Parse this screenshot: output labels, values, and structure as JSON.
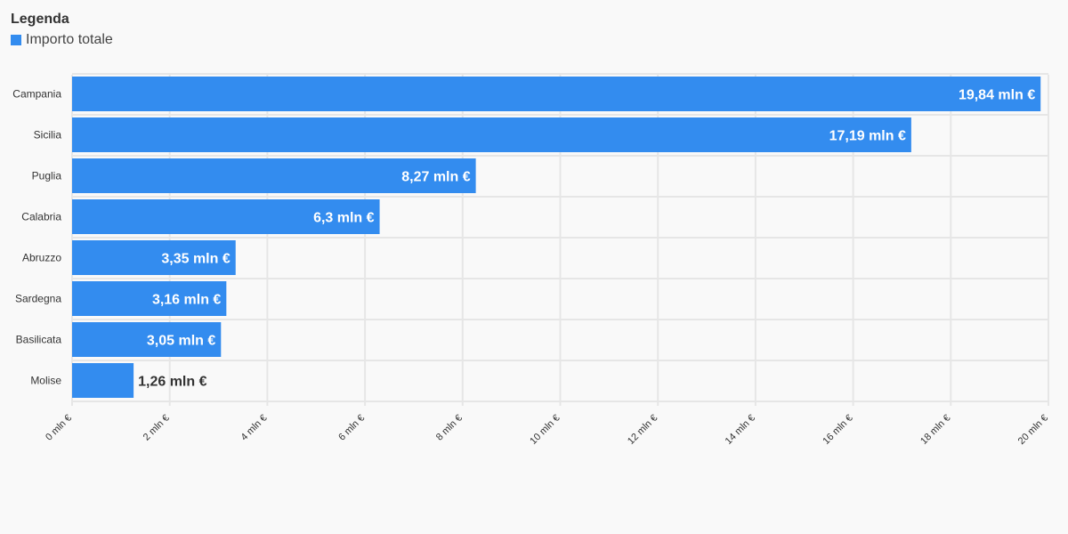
{
  "legend": {
    "title": "Legenda",
    "items": [
      {
        "label": "Importo totale",
        "color": "#338cef"
      }
    ]
  },
  "chart_data": {
    "type": "bar",
    "orientation": "horizontal",
    "categories": [
      "Campania",
      "Sicilia",
      "Puglia",
      "Calabria",
      "Abruzzo",
      "Sardegna",
      "Basilicata",
      "Molise"
    ],
    "series": [
      {
        "name": "Importo totale",
        "values": [
          19.84,
          17.19,
          8.27,
          6.3,
          3.35,
          3.16,
          3.05,
          1.26
        ],
        "labels": [
          "19,84 mln €",
          "17,19 mln €",
          "8,27 mln €",
          "6,3 mln €",
          "3,35 mln €",
          "3,16 mln €",
          "3,05 mln €",
          "1,26 mln €"
        ],
        "color": "#338cef"
      }
    ],
    "xlim": [
      0,
      20
    ],
    "x_ticks": [
      0,
      2,
      4,
      6,
      8,
      10,
      12,
      14,
      16,
      18,
      20
    ],
    "x_tick_labels": [
      "0 mln €",
      "2 mln €",
      "4 mln €",
      "6 mln €",
      "8 mln €",
      "10 mln €",
      "12 mln €",
      "14 mln €",
      "16 mln €",
      "18 mln €",
      "20 mln €"
    ],
    "grid": true,
    "legend_position": "top-left"
  }
}
